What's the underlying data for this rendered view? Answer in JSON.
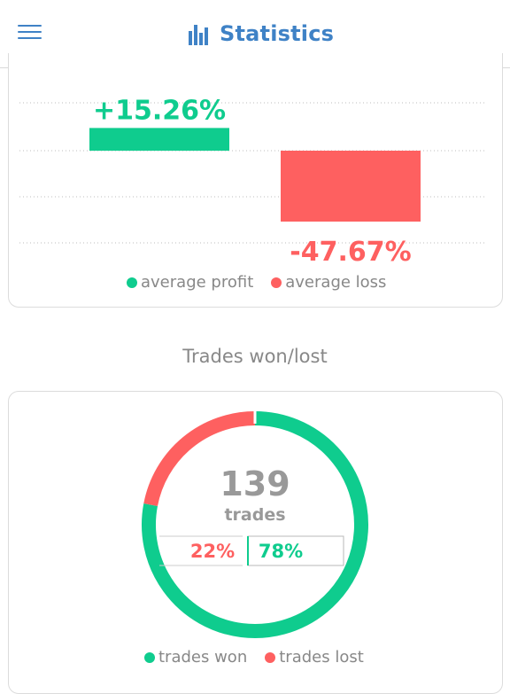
{
  "header": {
    "title": "Statistics",
    "menu_icon": "hamburger-menu-icon",
    "title_icon": "bar-chart-icon"
  },
  "colors": {
    "profit": "#0fcc8e",
    "loss": "#fe6060",
    "accent": "#3f82c6",
    "muted": "#888888"
  },
  "chart_data": [
    {
      "type": "bar",
      "categories": [
        "average profit",
        "average loss"
      ],
      "values": [
        15.26,
        -47.67
      ],
      "value_labels": [
        "+15.26%",
        "-47.67%"
      ],
      "unit": "%",
      "grid": true,
      "legend_position": "bottom",
      "legend": [
        "average profit",
        "average loss"
      ]
    },
    {
      "type": "pie",
      "title": "Trades won/lost",
      "center_value": "139",
      "center_label": "trades",
      "slices": [
        {
          "name": "trades won",
          "value": 78,
          "label": "78%"
        },
        {
          "name": "trades lost",
          "value": 22,
          "label": "22%"
        }
      ],
      "legend_position": "bottom",
      "legend": [
        "trades won",
        "trades lost"
      ]
    }
  ]
}
